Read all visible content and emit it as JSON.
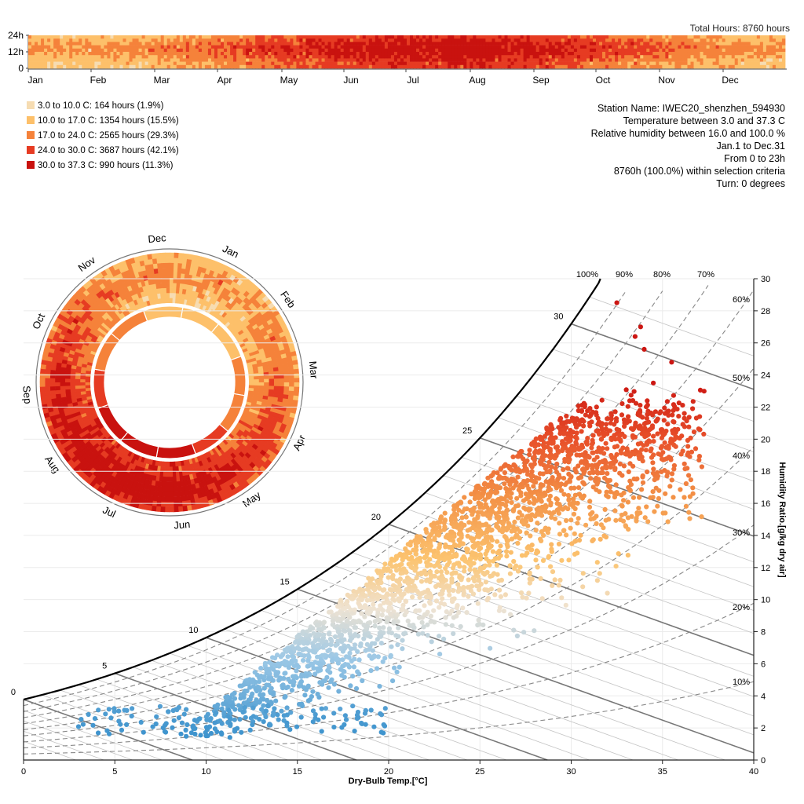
{
  "header": {
    "total_hours": "Total Hours: 8760 hours",
    "y_ticks": [
      "24h",
      "12h",
      "0"
    ],
    "months": [
      "Jan",
      "Feb",
      "Mar",
      "Apr",
      "May",
      "Jun",
      "Jul",
      "Aug",
      "Sep",
      "Oct",
      "Nov",
      "Dec"
    ]
  },
  "legend": {
    "items": [
      {
        "label": "3.0 to 10.0 C: 164 hours (1.9%)",
        "color": "#f6dcb2"
      },
      {
        "label": "10.0 to 17.0 C: 1354 hours (15.5%)",
        "color": "#fdc06a"
      },
      {
        "label": "17.0 to 24.0 C: 2565 hours (29.3%)",
        "color": "#f5823a"
      },
      {
        "label": "24.0 to 30.0 C: 3687 hours (42.1%)",
        "color": "#e63b22"
      },
      {
        "label": "30.0 to 37.3 C: 990 hours (11.3%)",
        "color": "#c9120f"
      }
    ]
  },
  "info": {
    "lines": [
      "Station Name: IWEC20_shenzhen_594930",
      "Temperature between 3.0 and 37.3 C",
      "Relative humidity between 16.0 and 100.0 %",
      "Jan.1 to Dec.31",
      "From 0 to 23h",
      "8760h (100.0%) within selection criteria",
      "Turn: 0 degrees"
    ]
  },
  "radial": {
    "months": [
      "Jan",
      "Feb",
      "Mar",
      "Apr",
      "May",
      "Jun",
      "Jul",
      "Aug",
      "Sep",
      "Oct",
      "Nov",
      "Dec"
    ]
  },
  "psychro": {
    "x_label": "Dry-Bulb Temp.[°C]",
    "y_label": "Humidity Ratio.[g/kg dry air]",
    "x_ticks": [
      0,
      5,
      10,
      15,
      20,
      25,
      30,
      35,
      40
    ],
    "y_ticks": [
      0,
      2,
      4,
      6,
      8,
      10,
      12,
      14,
      16,
      18,
      20,
      22,
      24,
      26,
      28,
      30
    ],
    "rh_labels": [
      "100%",
      "90%",
      "80%",
      "70%",
      "60%",
      "50%",
      "40%",
      "30%",
      "20%",
      "10%"
    ],
    "wetbulb_labels": [
      "0",
      "5",
      "10",
      "15",
      "20",
      "25",
      "30"
    ]
  },
  "chart_data": [
    {
      "type": "heatmap",
      "title": "",
      "total_hours": 8760,
      "x_categories": [
        "Jan",
        "Feb",
        "Mar",
        "Apr",
        "May",
        "Jun",
        "Jul",
        "Aug",
        "Sep",
        "Oct",
        "Nov",
        "Dec"
      ],
      "y_range_hours": [
        0,
        24
      ],
      "bins": [
        {
          "range": "3.0 to 10.0 C",
          "hours": 164,
          "percent": 1.9,
          "color": "#f6dcb2"
        },
        {
          "range": "10.0 to 17.0 C",
          "hours": 1354,
          "percent": 15.5,
          "color": "#fdc06a"
        },
        {
          "range": "17.0 to 24.0 C",
          "hours": 2565,
          "percent": 29.3,
          "color": "#f5823a"
        },
        {
          "range": "24.0 to 30.0 C",
          "hours": 3687,
          "percent": 42.1,
          "color": "#e63b22"
        },
        {
          "range": "30.0 to 37.3 C",
          "hours": 990,
          "percent": 11.3,
          "color": "#c9120f"
        }
      ]
    },
    {
      "type": "scatter",
      "xlabel": "Dry-Bulb Temp.[°C]",
      "ylabel": "Humidity Ratio.[g/kg dry air]",
      "xlim": [
        0,
        40
      ],
      "ylim": [
        0,
        30
      ],
      "rh_curves_percent": [
        100,
        90,
        80,
        70,
        60,
        50,
        40,
        30,
        20,
        10
      ],
      "wet_bulb_lines_c": [
        0,
        5,
        10,
        15,
        20,
        25,
        30
      ],
      "temperature_range_c": [
        3.0,
        37.3
      ],
      "rh_range_percent": [
        16.0,
        100.0
      ],
      "color_scale": {
        "low": "#4a9fd4",
        "mid": "#f0e6d8",
        "high": "#d6241c"
      }
    }
  ]
}
